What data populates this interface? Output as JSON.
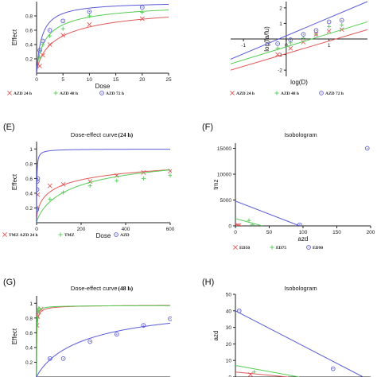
{
  "colors": {
    "red": "#e05a5a",
    "green": "#55cc55",
    "blue": "#5b5bd6"
  },
  "chart_data": [
    {
      "id": "A",
      "type": "line",
      "panel_label": "",
      "title": "",
      "xlabel": "Dose",
      "ylabel": "Effect",
      "xlim": [
        0,
        25
      ],
      "ylim": [
        0,
        1.0
      ],
      "xticks": [
        0,
        5,
        10,
        15,
        20,
        25
      ],
      "yticks": [
        0.2,
        0.4,
        0.6,
        0.8
      ],
      "series": [
        {
          "name": "AZD 24 h",
          "color": "#e05a5a",
          "marker": "x",
          "ec": 4.5,
          "m": 0.75,
          "emax": 1.0,
          "points": [
            [
              0.6,
              0.1
            ],
            [
              1.2,
              0.25
            ],
            [
              2.5,
              0.4
            ],
            [
              5,
              0.53
            ],
            [
              10,
              0.68
            ],
            [
              20,
              0.76
            ]
          ]
        },
        {
          "name": "AZD 48 h",
          "color": "#55cc55",
          "marker": "+",
          "ec": 2.0,
          "m": 0.8,
          "emax": 1.0,
          "points": [
            [
              0.6,
              0.22
            ],
            [
              1.2,
              0.4
            ],
            [
              2.5,
              0.52
            ],
            [
              5,
              0.62
            ],
            [
              10,
              0.8
            ],
            [
              20,
              0.85
            ]
          ]
        },
        {
          "name": "AZD 72 h",
          "color": "#5b5bd6",
          "marker": "o",
          "ec": 1.0,
          "m": 1.0,
          "emax": 1.0,
          "points": [
            [
              0.6,
              0.32
            ],
            [
              1.2,
              0.45
            ],
            [
              2.5,
              0.6
            ],
            [
              5,
              0.73
            ],
            [
              10,
              0.86
            ],
            [
              20,
              0.92
            ]
          ]
        }
      ],
      "legend": [
        "AZD 24 h",
        "AZD 48 h",
        "AZD 72 h"
      ]
    },
    {
      "id": "B",
      "type": "scatter",
      "panel_label": "",
      "title": "",
      "xlabel": "log(D)",
      "ylabel": "log(fa/fu)",
      "xlim": [
        -1.3,
        1.9
      ],
      "ylim": [
        -2.4,
        2.4
      ],
      "xticks": [
        -1.0,
        0.0,
        1.0
      ],
      "yticks": [
        -2.0,
        -1.0,
        1.0,
        2.0
      ],
      "series": [
        {
          "name": "AZD 24 h",
          "color": "#e05a5a",
          "marker": "x",
          "line": [
            [
              -1.3,
              -2.0
            ],
            [
              1.9,
              0.6
            ]
          ],
          "points": [
            [
              -0.2,
              -1.0
            ],
            [
              0.1,
              -0.6
            ],
            [
              0.4,
              -0.2
            ],
            [
              0.7,
              0.3
            ],
            [
              1.0,
              0.5
            ],
            [
              1.3,
              0.6
            ]
          ]
        },
        {
          "name": "AZD 48 h",
          "color": "#55cc55",
          "marker": "+",
          "line": [
            [
              -1.3,
              -1.6
            ],
            [
              1.9,
              1.1
            ]
          ],
          "points": [
            [
              -0.2,
              -0.6
            ],
            [
              0.1,
              -0.25
            ],
            [
              0.4,
              0.05
            ],
            [
              0.7,
              0.3
            ],
            [
              1.0,
              0.8
            ],
            [
              1.3,
              0.9
            ]
          ]
        },
        {
          "name": "AZD 72 h",
          "color": "#5b5bd6",
          "marker": "o",
          "line": [
            [
              -1.3,
              -1.3
            ],
            [
              1.9,
              2.4
            ]
          ],
          "points": [
            [
              -0.2,
              -0.3
            ],
            [
              0.1,
              -0.05
            ],
            [
              0.4,
              0.3
            ],
            [
              0.7,
              0.55
            ],
            [
              1.0,
              1.1
            ],
            [
              1.3,
              1.2
            ]
          ]
        }
      ],
      "legend": [
        "AZD 24 h",
        "AZD 48 h",
        "AZD 72 h"
      ]
    },
    {
      "id": "E",
      "type": "line",
      "panel_label": "(E)",
      "title": "Dose-effect curve",
      "title_suffix": "(24 h)",
      "xlabel": "Dose",
      "ylabel": "Effect",
      "xlim": [
        0,
        600
      ],
      "ylim": [
        0,
        1.1
      ],
      "xticks": [
        0,
        200,
        400,
        600
      ],
      "yticks": [
        0.2,
        0.4,
        0.6,
        0.8,
        1.0
      ],
      "series": [
        {
          "name": "TMZ AZD 24 h",
          "color": "#e05a5a",
          "marker": "x",
          "ec": 110,
          "m": 0.55,
          "emax": 1.0,
          "points": [
            [
              5,
              0.38
            ],
            [
              60,
              0.5
            ],
            [
              120,
              0.52
            ],
            [
              240,
              0.56
            ],
            [
              360,
              0.64
            ],
            [
              480,
              0.68
            ],
            [
              600,
              0.7
            ]
          ]
        },
        {
          "name": "TMZ",
          "color": "#55cc55",
          "marker": "+",
          "ec": 190,
          "m": 0.8,
          "emax": 1.0,
          "points": [
            [
              5,
              0.2
            ],
            [
              60,
              0.32
            ],
            [
              120,
              0.41
            ],
            [
              240,
              0.5
            ],
            [
              360,
              0.57
            ],
            [
              480,
              0.6
            ],
            [
              600,
              0.64
            ]
          ]
        },
        {
          "name": "AZD",
          "color": "#5b5bd6",
          "marker": "o",
          "ec": 1.0,
          "m": 0.9,
          "emax": 1.0,
          "points": [
            [
              1,
              0.18
            ],
            [
              2,
              0.45
            ],
            [
              3,
              0.56
            ],
            [
              5,
              0.6
            ]
          ]
        }
      ],
      "legend": [
        "TMZ AZD 24 h",
        "TMZ",
        "AZD"
      ]
    },
    {
      "id": "F",
      "type": "scatter",
      "panel_label": "(F)",
      "title": "Isobologram",
      "xlabel": "azd",
      "ylabel": "tmz",
      "xlim": [
        0,
        200
      ],
      "ylim": [
        0,
        16000
      ],
      "xticks": [
        0,
        50,
        100,
        150,
        200
      ],
      "yticks": [
        0,
        5000,
        10000,
        15000
      ],
      "series": [
        {
          "name": "ED50",
          "color": "#e05a5a",
          "marker": "x",
          "line": [
            [
              0,
              250
            ],
            [
              10,
              0
            ]
          ],
          "points": [
            [
              3,
              120
            ],
            [
              5,
              60
            ]
          ]
        },
        {
          "name": "ED75",
          "color": "#55cc55",
          "marker": "+",
          "line": [
            [
              0,
              1400
            ],
            [
              40,
              0
            ]
          ],
          "points": [
            [
              20,
              1050
            ],
            [
              25,
              200
            ]
          ]
        },
        {
          "name": "ED90",
          "color": "#5b5bd6",
          "marker": "o",
          "line": [
            [
              0,
              4800
            ],
            [
              95,
              0
            ]
          ],
          "points": [
            [
              195,
              15000
            ],
            [
              95,
              200
            ]
          ]
        }
      ],
      "legend": [
        "ED50",
        "ED75",
        "ED90"
      ]
    },
    {
      "id": "G",
      "type": "line",
      "panel_label": "(G)",
      "title": "Dose-effect curve",
      "title_suffix": "(48 h)",
      "xlabel": "",
      "ylabel": "Effect",
      "xlim": [
        0,
        600
      ],
      "ylim": [
        0,
        1.1
      ],
      "xticks": [
        0,
        100,
        200,
        300,
        400,
        500,
        600
      ],
      "yticks": [
        0.2,
        0.4,
        0.6,
        0.8,
        1.0
      ],
      "series": [
        {
          "name": "red",
          "color": "#e05a5a",
          "marker": "x",
          "ec": 0.8,
          "m": 0.7,
          "emax": 0.98,
          "points": [
            [
              2,
              0.7
            ],
            [
              5,
              0.82
            ],
            [
              10,
              0.88
            ],
            [
              20,
              0.92
            ]
          ]
        },
        {
          "name": "green",
          "color": "#55cc55",
          "marker": "+",
          "ec": 0.5,
          "m": 0.8,
          "emax": 0.97,
          "points": [
            [
              2,
              0.8
            ],
            [
              5,
              0.9
            ],
            [
              10,
              0.93
            ]
          ]
        },
        {
          "name": "blue",
          "color": "#5b5bd6",
          "marker": "o",
          "ec": 240,
          "m": 0.9,
          "emax": 1.05,
          "points": [
            [
              60,
              0.25
            ],
            [
              120,
              0.25
            ],
            [
              240,
              0.48
            ],
            [
              360,
              0.58
            ],
            [
              480,
              0.7
            ],
            [
              600,
              0.79
            ]
          ]
        }
      ],
      "legend": []
    },
    {
      "id": "H",
      "type": "scatter",
      "panel_label": "(H)",
      "title": "Isobologram",
      "xlabel": "",
      "ylabel": "azd",
      "xlim": [
        0,
        36
      ],
      "ylim": [
        0,
        50
      ],
      "xticks": [],
      "yticks": [
        0,
        10,
        20,
        30,
        40,
        50
      ],
      "series": [
        {
          "name": "red",
          "color": "#e05a5a",
          "marker": "x",
          "line": [
            [
              0,
              3
            ],
            [
              14,
              0
            ]
          ],
          "points": [
            [
              4,
              1.5
            ]
          ]
        },
        {
          "name": "green",
          "color": "#55cc55",
          "marker": "+",
          "line": [
            [
              0,
              7
            ],
            [
              17,
              0
            ]
          ],
          "points": [
            [
              5,
              3
            ]
          ]
        },
        {
          "name": "blue",
          "color": "#5b5bd6",
          "marker": "o",
          "line": [
            [
              0,
              40
            ],
            [
              34,
              0
            ]
          ],
          "points": [
            [
              1,
              40
            ],
            [
              26,
              5
            ]
          ]
        }
      ],
      "legend": []
    }
  ]
}
